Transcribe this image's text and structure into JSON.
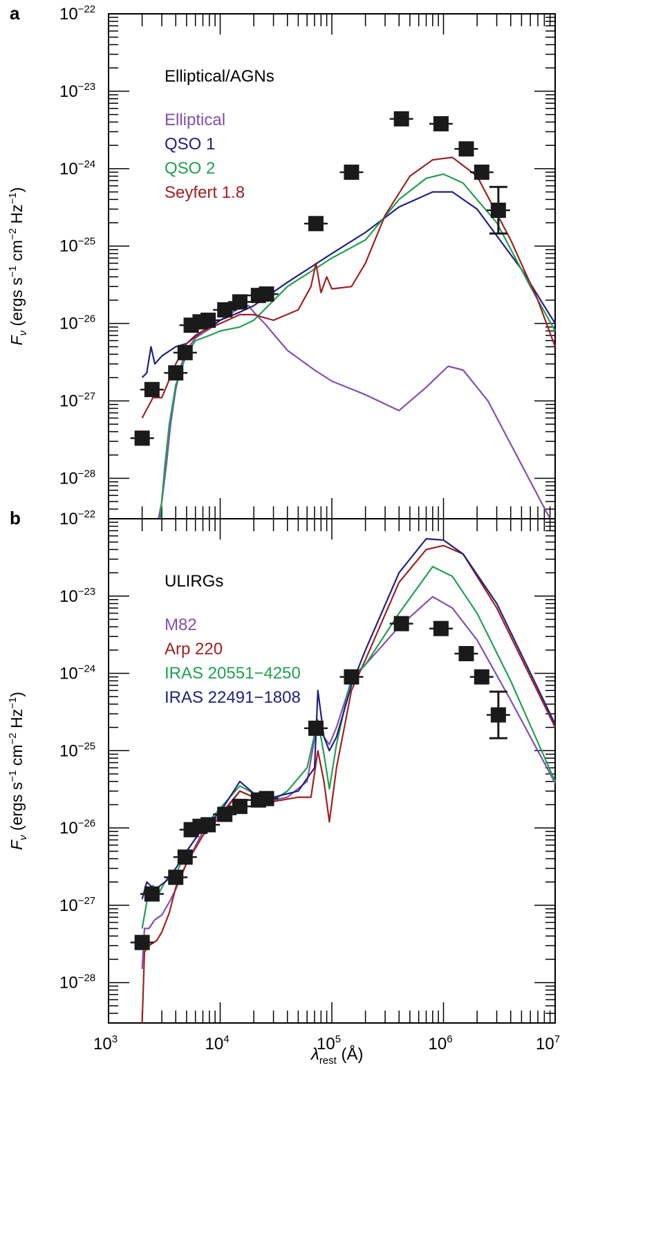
{
  "chart_data": [
    {
      "panel": "a",
      "type": "line",
      "log_x": true,
      "log_y": true,
      "xlim": [
        1000,
        10000000
      ],
      "ylim": [
        3e-29,
        1e-22
      ],
      "xlabel": "",
      "ylabel": "Fν (ergs s⁻¹ cm⁻² Hz⁻¹)",
      "legend_title": "Elliptical/AGNs",
      "series": [
        {
          "name": "Elliptical",
          "color": "#8050b0",
          "points": [
            [
              2800,
              3e-29
            ],
            [
              3000,
              5e-29
            ],
            [
              3300,
              1.5e-28
            ],
            [
              3600,
              5e-28
            ],
            [
              4000,
              1.4e-27
            ],
            [
              4500,
              3e-27
            ],
            [
              5000,
              4.5e-27
            ],
            [
              6000,
              6.5e-27
            ],
            [
              8000,
              8.5e-27
            ],
            [
              10000,
              1.1e-26
            ],
            [
              14000,
              1.5e-26
            ],
            [
              18000,
              1.7e-26
            ],
            [
              20000,
              1.4e-26
            ],
            [
              25000,
              1e-26
            ],
            [
              40000,
              4.5e-27
            ],
            [
              70000,
              2.5e-27
            ],
            [
              100000,
              1.8e-27
            ],
            [
              200000,
              1.2e-27
            ],
            [
              400000,
              7.5e-28
            ],
            [
              700000,
              1.5e-27
            ],
            [
              1100000,
              2.8e-27
            ],
            [
              1500000,
              2.5e-27
            ],
            [
              2500000,
              1e-27
            ],
            [
              5000000,
              1.5e-28
            ],
            [
              9000000,
              2e-29
            ]
          ]
        },
        {
          "name": "QSO 1",
          "color": "#202080",
          "points": [
            [
              2000,
              2e-27
            ],
            [
              2200,
              2.3e-27
            ],
            [
              2400,
              5e-27
            ],
            [
              2600,
              3e-27
            ],
            [
              3000,
              3.8e-27
            ],
            [
              4000,
              5e-27
            ],
            [
              5000,
              5.5e-27
            ],
            [
              6000,
              7e-27
            ],
            [
              8000,
              9e-27
            ],
            [
              10000,
              1.1e-26
            ],
            [
              15000,
              1.4e-26
            ],
            [
              20000,
              1.7e-26
            ],
            [
              40000,
              3.4e-26
            ],
            [
              100000,
              8e-26
            ],
            [
              200000,
              1.5e-25
            ],
            [
              400000,
              3.2e-25
            ],
            [
              800000,
              5e-25
            ],
            [
              1200000,
              5e-25
            ],
            [
              2000000,
              3e-25
            ],
            [
              5000000,
              5e-26
            ],
            [
              10000000,
              1e-26
            ]
          ]
        },
        {
          "name": "QSO 2",
          "color": "#20a050",
          "points": [
            [
              2900,
              3e-29
            ],
            [
              3200,
              1.5e-28
            ],
            [
              3500,
              5e-28
            ],
            [
              4000,
              1.6e-27
            ],
            [
              5000,
              4e-27
            ],
            [
              6000,
              6e-27
            ],
            [
              8000,
              7e-27
            ],
            [
              10000,
              8e-27
            ],
            [
              15000,
              9e-27
            ],
            [
              20000,
              1.1e-26
            ],
            [
              40000,
              3e-26
            ],
            [
              100000,
              7e-26
            ],
            [
              200000,
              1.2e-25
            ],
            [
              400000,
              4e-25
            ],
            [
              700000,
              7.5e-25
            ],
            [
              1000000,
              8.5e-25
            ],
            [
              1500000,
              6.5e-25
            ],
            [
              3000000,
              2e-25
            ],
            [
              6000000,
              3e-26
            ],
            [
              10000000,
              8e-27
            ]
          ]
        },
        {
          "name": "Seyfert 1.8",
          "color": "#a02020",
          "points": [
            [
              2000,
              6e-28
            ],
            [
              2500,
              1.1e-27
            ],
            [
              3000,
              1.1e-27
            ],
            [
              4000,
              3e-27
            ],
            [
              5000,
              5.5e-27
            ],
            [
              7000,
              8e-27
            ],
            [
              10000,
              1e-26
            ],
            [
              15000,
              1.3e-26
            ],
            [
              20000,
              1.3e-26
            ],
            [
              30000,
              1.1e-26
            ],
            [
              50000,
              1.5e-26
            ],
            [
              65000,
              3e-26
            ],
            [
              72000,
              6e-26
            ],
            [
              80000,
              2.5e-26
            ],
            [
              90000,
              4e-26
            ],
            [
              100000,
              2.8e-26
            ],
            [
              150000,
              3e-26
            ],
            [
              200000,
              6e-26
            ],
            [
              300000,
              2.5e-25
            ],
            [
              500000,
              8e-25
            ],
            [
              800000,
              1.3e-24
            ],
            [
              1200000,
              1.4e-24
            ],
            [
              2000000,
              8e-25
            ],
            [
              4000000,
              1.2e-25
            ],
            [
              7000000,
              2e-26
            ],
            [
              10000000,
              5e-27
            ]
          ]
        }
      ],
      "photometry": {
        "name": "data points",
        "points": [
          [
            2000,
            3.3e-28
          ],
          [
            2450,
            1.4e-27
          ],
          [
            4000,
            2.3e-27
          ],
          [
            4850,
            4.2e-27
          ],
          [
            5500,
            9.5e-27
          ],
          [
            6600,
            1.05e-26
          ],
          [
            7800,
            1.1e-26
          ],
          [
            11000,
            1.5e-26
          ],
          [
            15000,
            1.9e-26
          ],
          [
            22000,
            2.3e-26
          ],
          [
            26000,
            2.4e-26
          ],
          [
            72000,
            1.95e-25
          ],
          [
            150000,
            9e-25
          ],
          [
            420000,
            4.4e-24
          ],
          [
            950000,
            3.8e-24
          ],
          [
            1600000,
            1.8e-24
          ],
          [
            2200000,
            9e-25
          ],
          [
            3100000,
            2.9e-25
          ]
        ],
        "error_bar_upper": 5.8e-25,
        "error_bar_lower": 1.45e-25
      },
      "ytick_labels": [
        "10⁻²⁸",
        "10⁻²⁷",
        "10⁻²⁶",
        "10⁻²⁵",
        "10⁻²⁴",
        "10⁻²³",
        "10⁻²²"
      ]
    },
    {
      "panel": "b",
      "type": "line",
      "log_x": true,
      "log_y": true,
      "xlim": [
        1000,
        10000000
      ],
      "ylim": [
        3e-29,
        1e-22
      ],
      "xlabel": "λrest (Å)",
      "ylabel": "Fν (ergs s⁻¹ cm⁻² Hz⁻¹)",
      "legend_title": "ULIRGs",
      "series": [
        {
          "name": "M82",
          "color": "#8050b0",
          "points": [
            [
              2000,
              1.5e-28
            ],
            [
              2100,
              5e-28
            ],
            [
              2300,
              5e-28
            ],
            [
              2600,
              6.5e-28
            ],
            [
              3000,
              7.5e-28
            ],
            [
              3500,
              1.1e-27
            ],
            [
              4000,
              1.6e-27
            ],
            [
              5000,
              3.5e-27
            ],
            [
              7000,
              9e-27
            ],
            [
              10000,
              1.5e-26
            ],
            [
              15000,
              3e-26
            ],
            [
              20000,
              2.5e-26
            ],
            [
              30000,
              2.3e-26
            ],
            [
              40000,
              2.5e-26
            ],
            [
              60000,
              4e-26
            ],
            [
              75000,
              2.5e-25
            ],
            [
              85000,
              1.5e-25
            ],
            [
              95000,
              1.2e-25
            ],
            [
              110000,
              2e-25
            ],
            [
              150000,
              8e-25
            ],
            [
              200000,
              1.3e-24
            ],
            [
              400000,
              4e-24
            ],
            [
              800000,
              9.8e-24
            ],
            [
              1200000,
              7e-24
            ],
            [
              2000000,
              2.7e-24
            ],
            [
              4000000,
              4.5e-25
            ],
            [
              10000000,
              3.8e-26
            ]
          ]
        },
        {
          "name": "Arp 220",
          "color": "#a02020",
          "points": [
            [
              2000,
              3e-29
            ],
            [
              2100,
              2.5e-28
            ],
            [
              2300,
              3e-28
            ],
            [
              2700,
              3.5e-28
            ],
            [
              3000,
              4.5e-28
            ],
            [
              3500,
              8e-28
            ],
            [
              4000,
              1.7e-27
            ],
            [
              5000,
              3.5e-27
            ],
            [
              7000,
              8e-27
            ],
            [
              10000,
              1.4e-26
            ],
            [
              15000,
              3e-26
            ],
            [
              20000,
              2.5e-26
            ],
            [
              30000,
              2.2e-26
            ],
            [
              50000,
              2.5e-26
            ],
            [
              65000,
              2.5e-26
            ],
            [
              75000,
              1e-25
            ],
            [
              85000,
              4e-26
            ],
            [
              95000,
              1.2e-26
            ],
            [
              110000,
              6e-26
            ],
            [
              150000,
              6e-25
            ],
            [
              200000,
              1.5e-24
            ],
            [
              400000,
              1.5e-23
            ],
            [
              700000,
              4e-23
            ],
            [
              1000000,
              4.5e-23
            ],
            [
              1500000,
              3.5e-23
            ],
            [
              3000000,
              7e-24
            ],
            [
              10000000,
              2e-25
            ]
          ]
        },
        {
          "name": "IRAS 20551−4250",
          "color": "#20a050",
          "points": [
            [
              2000,
              5e-28
            ],
            [
              2200,
              1.1e-27
            ],
            [
              2500,
              1.8e-27
            ],
            [
              2800,
              1.4e-27
            ],
            [
              3200,
              2e-27
            ],
            [
              4000,
              2.5e-27
            ],
            [
              5000,
              5e-27
            ],
            [
              7000,
              1e-26
            ],
            [
              10000,
              1.8e-26
            ],
            [
              15000,
              3.5e-26
            ],
            [
              20000,
              2.8e-26
            ],
            [
              30000,
              2.3e-26
            ],
            [
              40000,
              3e-26
            ],
            [
              60000,
              6e-26
            ],
            [
              75000,
              2.5e-25
            ],
            [
              85000,
              9e-26
            ],
            [
              95000,
              3.2e-26
            ],
            [
              110000,
              1.2e-25
            ],
            [
              150000,
              9e-25
            ],
            [
              200000,
              1.3e-24
            ],
            [
              400000,
              6e-24
            ],
            [
              800000,
              2.4e-23
            ],
            [
              1200000,
              1.8e-23
            ],
            [
              2000000,
              6e-24
            ],
            [
              4000000,
              8e-25
            ],
            [
              10000000,
              4e-26
            ]
          ]
        },
        {
          "name": "IRAS 22491−1808",
          "color": "#202080",
          "points": [
            [
              2000,
              1.2e-27
            ],
            [
              2200,
              2e-27
            ],
            [
              2600,
              1.6e-27
            ],
            [
              3200,
              2e-27
            ],
            [
              4000,
              3e-27
            ],
            [
              5000,
              5e-27
            ],
            [
              7000,
              1e-26
            ],
            [
              10000,
              1.6e-26
            ],
            [
              15000,
              4e-26
            ],
            [
              20000,
              2.8e-26
            ],
            [
              30000,
              2.5e-26
            ],
            [
              50000,
              3e-26
            ],
            [
              70000,
              6e-26
            ],
            [
              75000,
              6e-25
            ],
            [
              85000,
              1.5e-25
            ],
            [
              95000,
              1e-25
            ],
            [
              110000,
              1.5e-25
            ],
            [
              150000,
              7e-25
            ],
            [
              200000,
              2e-24
            ],
            [
              400000,
              2e-23
            ],
            [
              700000,
              5.5e-23
            ],
            [
              1000000,
              5.3e-23
            ],
            [
              1500000,
              3.5e-23
            ],
            [
              3000000,
              8e-24
            ],
            [
              10000000,
              2.2e-25
            ]
          ]
        }
      ],
      "photometry": {
        "name": "data points",
        "points": [
          [
            2000,
            3.3e-28
          ],
          [
            2450,
            1.4e-27
          ],
          [
            4000,
            2.3e-27
          ],
          [
            4850,
            4.2e-27
          ],
          [
            5500,
            9.5e-27
          ],
          [
            6600,
            1.05e-26
          ],
          [
            7800,
            1.1e-26
          ],
          [
            11000,
            1.5e-26
          ],
          [
            15000,
            1.9e-26
          ],
          [
            22000,
            2.3e-26
          ],
          [
            26000,
            2.4e-26
          ],
          [
            72000,
            1.95e-25
          ],
          [
            150000,
            9e-25
          ],
          [
            420000,
            4.4e-24
          ],
          [
            950000,
            3.8e-24
          ],
          [
            1600000,
            1.8e-24
          ],
          [
            2200000,
            9e-25
          ],
          [
            3100000,
            2.9e-25
          ]
        ],
        "error_bar_upper": 5.8e-25,
        "error_bar_lower": 1.45e-25
      },
      "ytick_labels": [
        "10⁻²⁸",
        "10⁻²⁷",
        "10⁻²⁶",
        "10⁻²⁵",
        "10⁻²⁴",
        "10⁻²³",
        "10⁻²²"
      ],
      "xtick_labels": [
        "10³",
        "10⁴",
        "10⁵",
        "10⁶",
        "10⁷"
      ]
    }
  ],
  "panels": {
    "a_letter": "a",
    "b_letter": "b",
    "a_legend_title": "Elliptical/AGNs",
    "b_legend_title": "ULIRGs",
    "a_legend": [
      "Elliptical",
      "QSO 1",
      "QSO 2",
      "Seyfert 1.8"
    ],
    "b_legend": [
      "M82",
      "Arp 220",
      "IRAS 20551−4250",
      "IRAS 22491−1808"
    ]
  },
  "axis_labels": {
    "y_main": "F",
    "y_sub": "ν",
    "y_units": " (ergs s",
    "y_exp1": "−1",
    "y_mid": " cm",
    "y_exp2": "−2",
    "y_hz": " Hz",
    "y_exp3": "−1",
    "y_close": ")",
    "x_main": "λ",
    "x_sub": "rest",
    "x_units": " (Å)"
  },
  "tick_text": {
    "base": "10",
    "y_exps": [
      "−28",
      "−27",
      "−26",
      "−25",
      "−24",
      "−23",
      "−22"
    ],
    "x_exps": [
      "3",
      "4",
      "5",
      "6",
      "7"
    ]
  },
  "colors": {
    "elliptical": "#8050b0",
    "qso1": "#202080",
    "qso2": "#20a050",
    "seyfert": "#a02020"
  }
}
